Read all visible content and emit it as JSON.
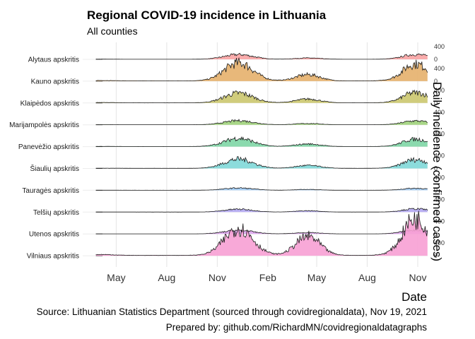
{
  "chart_data": {
    "type": "area",
    "subtype": "ridgeline",
    "title": "Regional COVID-19 incidence in Lithuania",
    "subtitle": "All counties",
    "xlabel": "Date",
    "ylabel": "Daily incidence (confirmed cases)",
    "x_ticks": [
      "May",
      "Aug",
      "Nov",
      "Feb",
      "May",
      "Aug",
      "Nov"
    ],
    "x_tick_dates": [
      "2020-05-01",
      "2020-08-01",
      "2020-11-01",
      "2021-02-01",
      "2021-05-01",
      "2021-08-01",
      "2021-11-01"
    ],
    "xlim": [
      "2020-03-01",
      "2021-11-19"
    ],
    "y_tick_labels": [
      "0",
      "400"
    ],
    "panel_ylim": [
      0,
      560
    ],
    "grid": true,
    "legend": "none",
    "caption_lines": [
      "Source: Lithuanian Statistics Department (sourced through covidregionaldata), Nov 19, 2021",
      "Prepared by: github.com/RichardMN/covidregionaldatagraphs"
    ],
    "wave_centers": [
      "2020-04-05",
      "2020-12-10",
      "2021-04-15",
      "2021-10-28"
    ],
    "series": [
      {
        "name": "Alytaus apskritis",
        "color": "#f8a3a3",
        "peaks": [
          3,
          150,
          40,
          150
        ]
      },
      {
        "name": "Kauno apskritis",
        "color": "#e6b06c",
        "peaks": [
          12,
          570,
          200,
          530
        ]
      },
      {
        "name": "Klaipėdos apskritis",
        "color": "#cbc76e",
        "peaks": [
          10,
          310,
          120,
          320
        ]
      },
      {
        "name": "Marijampolės apskritis",
        "color": "#9ed27a",
        "peaks": [
          2,
          130,
          40,
          120
        ]
      },
      {
        "name": "Panevėžio apskritis",
        "color": "#7ed6a5",
        "peaks": [
          3,
          260,
          80,
          230
        ]
      },
      {
        "name": "Šiaulių apskritis",
        "color": "#7fd8d8",
        "peaks": [
          3,
          290,
          90,
          270
        ]
      },
      {
        "name": "Tauragės apskritis",
        "color": "#9ecbf5",
        "peaks": [
          1,
          70,
          25,
          60
        ]
      },
      {
        "name": "Telšių apskritis",
        "color": "#b3a8f2",
        "peaks": [
          1,
          90,
          40,
          100
        ]
      },
      {
        "name": "Utenos apskritis",
        "color": "#dea6ee",
        "peaks": [
          1,
          110,
          40,
          120
        ]
      },
      {
        "name": "Vilniaus apskritis",
        "color": "#f7a0d4",
        "peaks": [
          25,
          850,
          600,
          1150
        ]
      }
    ]
  }
}
